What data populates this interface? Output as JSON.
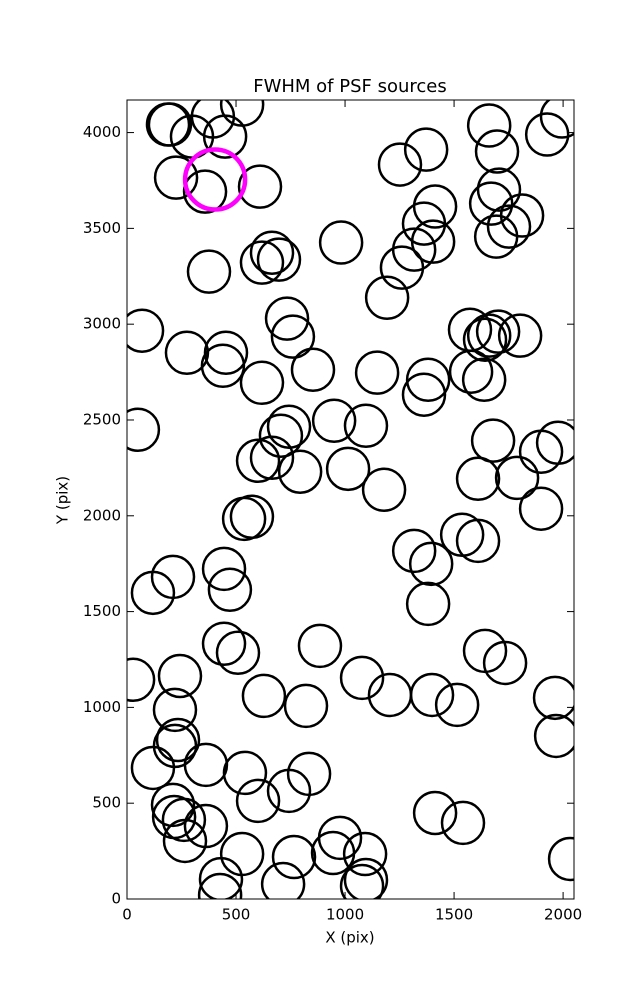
{
  "chart_data": {
    "type": "scatter",
    "title": "FWHM of PSF sources",
    "x_label": "X (pix)",
    "y_label": "Y (pix)",
    "xlim": [
      0,
      2050
    ],
    "ylim": [
      0,
      4170
    ],
    "xticks": [
      0,
      500,
      1000,
      1500,
      2000
    ],
    "yticks": [
      0,
      500,
      1000,
      1500,
      2000,
      2500,
      3000,
      3500,
      4000
    ],
    "series": [
      {
        "color": "#000000",
        "x": [
          188,
          197,
          298,
          394,
          450,
          528,
          225,
          358,
          610,
          376,
          619,
          665,
          697,
          982,
          1252,
          1372,
          1661,
          1697,
          1927,
          1995,
          1706,
          1670,
          1693,
          1752,
          1812,
          1413,
          1362,
          1317,
          1404,
          1261,
          1193,
          69,
          275,
          454,
          440,
          734,
          761,
          853,
          619,
          1573,
          1661,
          1642,
          1702,
          1803,
          1147,
          1381,
          1362,
          1578,
          1638,
          50,
          743,
          706,
          950,
          1096,
          601,
          665,
          794,
          1014,
          1179,
          1679,
          1899,
          1977,
          1610,
          1789,
          1899,
          537,
          573,
          1317,
          1395,
          1537,
          1610,
          1381,
          211,
          119,
          445,
          472,
          445,
          509,
          885,
          28,
          243,
          628,
          821,
          1078,
          1206,
          1399,
          1514,
          1642,
          1734,
          1963,
          1968,
          220,
          234,
          220,
          119,
          362,
          541,
          835,
          743,
          601,
          211,
          216,
          261,
          362,
          266,
          977,
          945,
          1092,
          528,
          766,
          431,
          716,
          1096,
          1078,
          427,
          1413,
          1541,
          2032
        ],
        "values": [
          4042,
          4042,
          3979,
          4084,
          3979,
          4146,
          3765,
          3692,
          3718,
          3274,
          3321,
          3373,
          3337,
          3426,
          3833,
          3911,
          4037,
          3901,
          3990,
          4084,
          3702,
          3629,
          3457,
          3509,
          3567,
          3614,
          3525,
          3389,
          3431,
          3295,
          3138,
          2966,
          2851,
          2851,
          2783,
          3029,
          2935,
          2762,
          2694,
          2971,
          2940,
          2919,
          2961,
          2940,
          2747,
          2710,
          2632,
          2752,
          2710,
          2449,
          2465,
          2418,
          2496,
          2470,
          2287,
          2303,
          2230,
          2245,
          2136,
          2392,
          2334,
          2381,
          2193,
          2198,
          2037,
          1984,
          1995,
          1817,
          1749,
          1901,
          1869,
          1540,
          1681,
          1598,
          1723,
          1614,
          1332,
          1285,
          1321,
          1144,
          1164,
          1060,
          1008,
          1154,
          1065,
          1065,
          1013,
          1295,
          1232,
          1050,
          851,
          987,
          830,
          799,
          684,
          700,
          658,
          653,
          564,
          512,
          491,
          428,
          413,
          381,
          303,
          319,
          240,
          235,
          235,
          219,
          104,
          78,
          99,
          68,
          21,
          449,
          397,
          209
        ]
      },
      {
        "color": "#ff00ff",
        "x": [
          404
        ],
        "values": [
          3755
        ]
      }
    ]
  }
}
